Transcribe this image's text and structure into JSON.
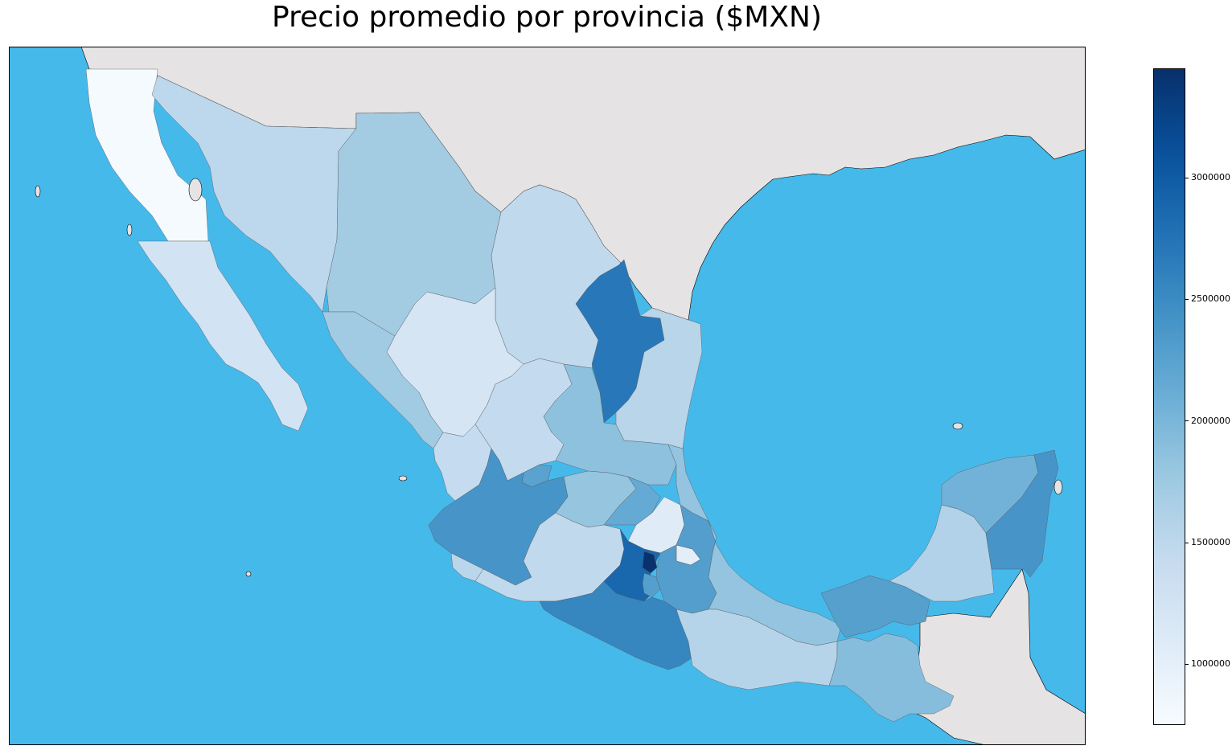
{
  "title": "Precio promedio por provincia ($MXN)",
  "colors": {
    "ocean": "#46b9eb",
    "land": "#e5e3e3",
    "colormap": "Blues",
    "scale_low": "#f7fbff",
    "scale_high": "#08306b"
  },
  "colorbar": {
    "min": 750000,
    "max": 3450000,
    "ticks": [
      {
        "value": 1000000,
        "label": "1000000"
      },
      {
        "value": 1500000,
        "label": "1500000"
      },
      {
        "value": 2000000,
        "label": "2000000"
      },
      {
        "value": 2500000,
        "label": "2500000"
      },
      {
        "value": 3000000,
        "label": "3000000"
      }
    ]
  },
  "regions": [
    {
      "name": "baja-california",
      "value": 780000
    },
    {
      "name": "baja-california-sur",
      "value": 1260000
    },
    {
      "name": "sonora",
      "value": 1500000
    },
    {
      "name": "chihuahua",
      "value": 1720000
    },
    {
      "name": "coahuila",
      "value": 1470000
    },
    {
      "name": "nuevo-leon",
      "value": 2700000
    },
    {
      "name": "tamaulipas",
      "value": 1540000
    },
    {
      "name": "sinaloa",
      "value": 1740000
    },
    {
      "name": "durango",
      "value": 1210000
    },
    {
      "name": "zacatecas",
      "value": 1440000
    },
    {
      "name": "san-luis-potosi",
      "value": 1870000
    },
    {
      "name": "nayarit",
      "value": 1430000
    },
    {
      "name": "aguascalientes",
      "value": 2240000
    },
    {
      "name": "jalisco",
      "value": 2400000
    },
    {
      "name": "guanajuato",
      "value": 1820000
    },
    {
      "name": "queretaro",
      "value": 2150000
    },
    {
      "name": "hidalgo",
      "value": 1070000
    },
    {
      "name": "colima",
      "value": 1530000
    },
    {
      "name": "michoacan",
      "value": 1470000
    },
    {
      "name": "estado-de-mexico",
      "value": 2880000
    },
    {
      "name": "ciudad-de-mexico",
      "value": 3430000
    },
    {
      "name": "morelos",
      "value": 2280000
    },
    {
      "name": "tlaxcala",
      "value": 1020000
    },
    {
      "name": "puebla",
      "value": 2290000
    },
    {
      "name": "veracruz",
      "value": 1830000
    },
    {
      "name": "guerrero",
      "value": 2560000
    },
    {
      "name": "oaxaca",
      "value": 1560000
    },
    {
      "name": "chiapas",
      "value": 1920000
    },
    {
      "name": "tabasco",
      "value": 2270000
    },
    {
      "name": "campeche",
      "value": 1600000
    },
    {
      "name": "yucatan",
      "value": 2050000
    },
    {
      "name": "quintana-roo",
      "value": 2400000
    }
  ]
}
